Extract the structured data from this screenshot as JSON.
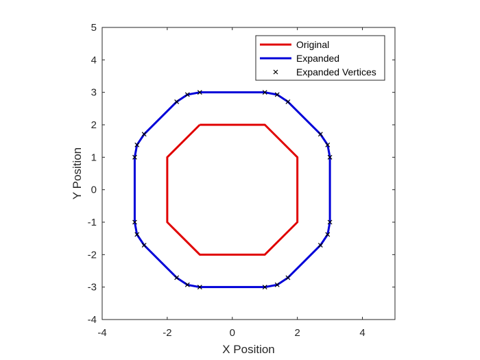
{
  "chart_data": {
    "type": "line",
    "title": "",
    "xlabel": "X Position",
    "ylabel": "Y Position",
    "xlim": [
      -4,
      5
    ],
    "ylim": [
      -4,
      5
    ],
    "xticks": [
      -4,
      -2,
      0,
      2,
      4
    ],
    "yticks": [
      -4,
      -3,
      -2,
      -1,
      0,
      1,
      2,
      3,
      4,
      5
    ],
    "grid": false,
    "legend_position": "top-right",
    "series": [
      {
        "name": "Original",
        "style": "line",
        "color": "#e00000",
        "points": [
          [
            -1,
            2
          ],
          [
            1,
            2
          ],
          [
            2,
            1
          ],
          [
            2,
            -1
          ],
          [
            1,
            -2
          ],
          [
            -1,
            -2
          ],
          [
            -2,
            -1
          ],
          [
            -2,
            1
          ],
          [
            -1,
            2
          ]
        ]
      },
      {
        "name": "Expanded",
        "style": "line",
        "color": "#0000d8",
        "points": [
          [
            -1,
            3
          ],
          [
            1,
            3
          ],
          [
            1.38,
            2.93
          ],
          [
            1.71,
            2.71
          ],
          [
            2.71,
            1.71
          ],
          [
            2.93,
            1.38
          ],
          [
            3,
            1
          ],
          [
            3,
            -1
          ],
          [
            2.93,
            -1.38
          ],
          [
            2.71,
            -1.71
          ],
          [
            1.71,
            -2.71
          ],
          [
            1.38,
            -2.93
          ],
          [
            1,
            -3
          ],
          [
            -1,
            -3
          ],
          [
            -1.38,
            -2.93
          ],
          [
            -1.71,
            -2.71
          ],
          [
            -2.71,
            -1.71
          ],
          [
            -2.93,
            -1.38
          ],
          [
            -3,
            -1
          ],
          [
            -3,
            1
          ],
          [
            -2.93,
            1.38
          ],
          [
            -2.71,
            1.71
          ],
          [
            -1.71,
            2.71
          ],
          [
            -1.38,
            2.93
          ],
          [
            -1,
            3
          ]
        ]
      },
      {
        "name": "Expanded Vertices",
        "style": "marker",
        "marker": "x",
        "color": "#000000",
        "points": [
          [
            -1,
            3
          ],
          [
            1,
            3
          ],
          [
            1.38,
            2.93
          ],
          [
            1.71,
            2.71
          ],
          [
            2.71,
            1.71
          ],
          [
            2.93,
            1.38
          ],
          [
            3,
            1
          ],
          [
            3,
            -1
          ],
          [
            2.93,
            -1.38
          ],
          [
            2.71,
            -1.71
          ],
          [
            1.71,
            -2.71
          ],
          [
            1.38,
            -2.93
          ],
          [
            1,
            -3
          ],
          [
            -1,
            -3
          ],
          [
            -1.38,
            -2.93
          ],
          [
            -1.71,
            -2.71
          ],
          [
            -2.71,
            -1.71
          ],
          [
            -2.93,
            -1.38
          ],
          [
            -3,
            -1
          ],
          [
            -3,
            1
          ],
          [
            -2.93,
            1.38
          ],
          [
            -2.71,
            1.71
          ],
          [
            -1.71,
            2.71
          ],
          [
            -1.38,
            2.93
          ]
        ]
      }
    ]
  }
}
